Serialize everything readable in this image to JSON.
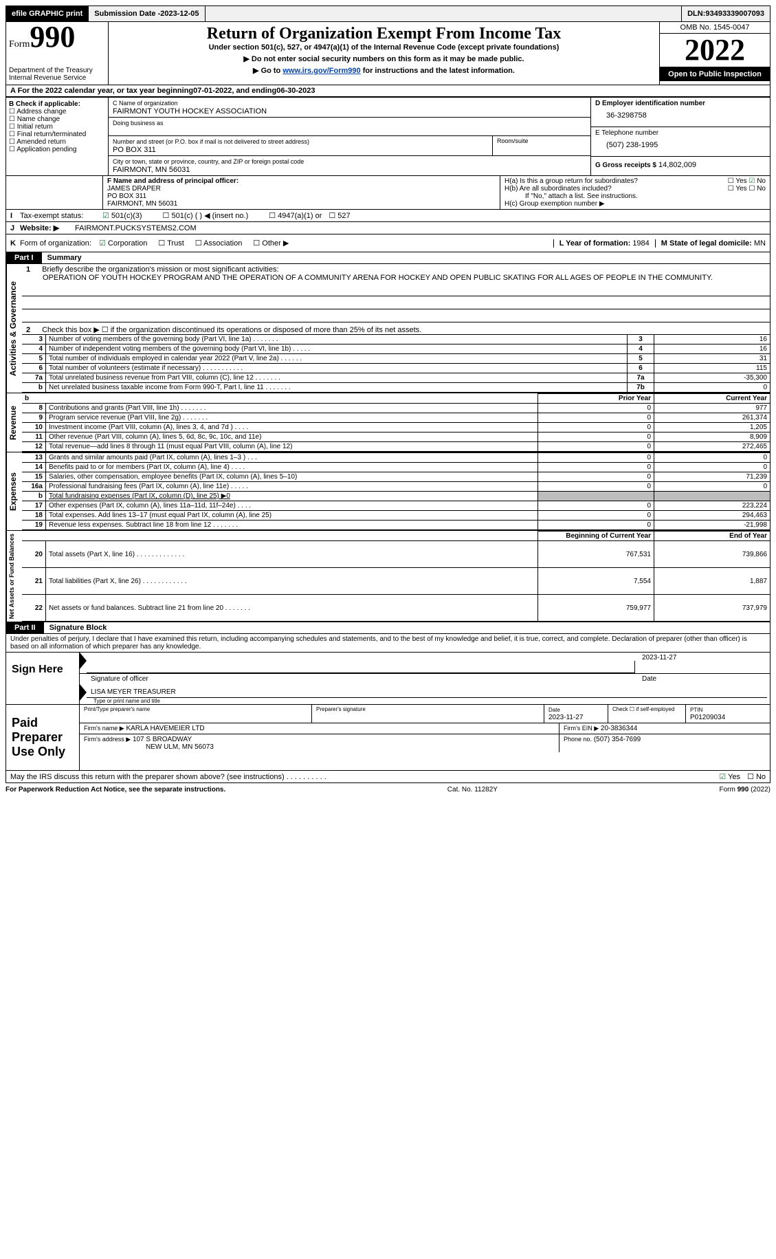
{
  "topbar": {
    "efile": "efile GRAPHIC print",
    "submission_label": "Submission Date - ",
    "submission_date": "2023-12-05",
    "dln_label": "DLN: ",
    "dln": "93493339007093"
  },
  "header": {
    "form_word": "Form",
    "form_num": "990",
    "dept": "Department of the Treasury\nInternal Revenue Service",
    "title": "Return of Organization Exempt From Income Tax",
    "subtitle": "Under section 501(c), 527, or 4947(a)(1) of the Internal Revenue Code (except private foundations)",
    "note1": "▶ Do not enter social security numbers on this form as it may be made public.",
    "note2_pre": "▶ Go to ",
    "note2_link": "www.irs.gov/Form990",
    "note2_post": " for instructions and the latest information.",
    "omb": "OMB No. 1545-0047",
    "year": "2022",
    "open": "Open to Public Inspection"
  },
  "period": {
    "a_label": "A For the 2022 calendar year, or tax year beginning ",
    "begin": "07-01-2022",
    "mid": " , and ending ",
    "end": "06-30-2023"
  },
  "box_b": {
    "label": "B Check if applicable:",
    "items": [
      "Address change",
      "Name change",
      "Initial return",
      "Final return/terminated",
      "Amended return",
      "Application pending"
    ]
  },
  "box_c": {
    "name_label": "C Name of organization",
    "name": "FAIRMONT YOUTH HOCKEY ASSOCIATION",
    "dba_label": "Doing business as",
    "addr_label": "Number and street (or P.O. box if mail is not delivered to street address)",
    "room_label": "Room/suite",
    "addr": "PO BOX 311",
    "city_label": "City or town, state or province, country, and ZIP or foreign postal code",
    "city": "FAIRMONT, MN  56031"
  },
  "box_d": {
    "label": "D Employer identification number",
    "value": "36-3298758"
  },
  "box_e": {
    "label": "E Telephone number",
    "value": "(507) 238-1995"
  },
  "box_g": {
    "label": "G Gross receipts $",
    "value": "14,802,009"
  },
  "box_f": {
    "label": "F  Name and address of principal officer:",
    "name": "JAMES DRAPER",
    "addr1": "PO BOX 311",
    "addr2": "FAIRMONT, MN  56031"
  },
  "box_h": {
    "a": "H(a)  Is this a group return for subordinates?",
    "b": "H(b)  Are all subordinates included?",
    "b_note": "If \"No,\" attach a list. See instructions.",
    "c": "H(c)  Group exemption number ▶",
    "yes": "Yes",
    "no": "No"
  },
  "tax_status": {
    "i": "I",
    "label": "Tax-exempt status:",
    "o1": "501(c)(3)",
    "o2": "501(c) (   ) ◀ (insert no.)",
    "o3": "4947(a)(1) or",
    "o4": "527"
  },
  "website": {
    "j": "J",
    "label": "Website: ▶",
    "value": "FAIRMONT.PUCKSYSTEMS2.COM"
  },
  "line_k": {
    "k": "K",
    "label": "Form of organization:",
    "o1": "Corporation",
    "o2": "Trust",
    "o3": "Association",
    "o4": "Other ▶",
    "l_label": "L Year of formation:",
    "l_val": "1984",
    "m_label": "M State of legal domicile:",
    "m_val": "MN"
  },
  "part1": {
    "tag": "Part I",
    "title": "Summary",
    "q1": "Briefly describe the organization's mission or most significant activities:",
    "mission": "OPERATION OF YOUTH HOCKEY PROGRAM AND THE OPERATION OF A COMMUNITY ARENA FOR HOCKEY AND OPEN PUBLIC SKATING FOR ALL AGES OF PEOPLE IN THE COMMUNITY.",
    "q2": "Check this box ▶ ☐  if the organization discontinued its operations or disposed of more than 25% of its net assets.",
    "vtab_ag": "Activities & Governance",
    "vtab_rev": "Revenue",
    "vtab_exp": "Expenses",
    "vtab_na": "Net Assets or Fund Balances",
    "hdr_prior": "Prior Year",
    "hdr_curr": "Current Year",
    "hdr_boy": "Beginning of Current Year",
    "hdr_eoy": "End of Year",
    "gov_rows": [
      {
        "n": "3",
        "d": "Number of voting members of the governing body (Part VI, line 1a)   .    .    .    .    .    .    .",
        "box": "3",
        "v": "16"
      },
      {
        "n": "4",
        "d": "Number of independent voting members of the governing body (Part VI, line 1b)   .    .    .    .    .",
        "box": "4",
        "v": "16"
      },
      {
        "n": "5",
        "d": "Total number of individuals employed in calendar year 2022 (Part V, line 2a)   .    .    .    .    .    .",
        "box": "5",
        "v": "31"
      },
      {
        "n": "6",
        "d": "Total number of volunteers (estimate if necessary)    .    .    .    .    .    .    .    .    .    .    .",
        "box": "6",
        "v": "115"
      },
      {
        "n": "7a",
        "d": "Total unrelated business revenue from Part VIII, column (C), line 12   .    .    .    .    .    .    .",
        "box": "7a",
        "v": "-35,300"
      },
      {
        "n": "b",
        "d": "Net unrelated business taxable income from Form 990-T, Part I, line 11   .    .    .    .    .    .    .",
        "box": "7b",
        "v": "0"
      }
    ],
    "rev_rows": [
      {
        "n": "8",
        "d": "Contributions and grants (Part VIII, line 1h)   .    .    .    .    .    .    .",
        "p": "0",
        "c": "977"
      },
      {
        "n": "9",
        "d": "Program service revenue (Part VIII, line 2g)   .    .    .    .    .    .    .",
        "p": "0",
        "c": "261,374"
      },
      {
        "n": "10",
        "d": "Investment income (Part VIII, column (A), lines 3, 4, and 7d )   .    .    .    .",
        "p": "0",
        "c": "1,205"
      },
      {
        "n": "11",
        "d": "Other revenue (Part VIII, column (A), lines 5, 6d, 8c, 9c, 10c, and 11e)",
        "p": "0",
        "c": "8,909"
      },
      {
        "n": "12",
        "d": "Total revenue—add lines 8 through 11 (must equal Part VIII, column (A), line 12)",
        "p": "0",
        "c": "272,465"
      }
    ],
    "exp_rows": [
      {
        "n": "13",
        "d": "Grants and similar amounts paid (Part IX, column (A), lines 1–3 )   .    .    .",
        "p": "0",
        "c": "0"
      },
      {
        "n": "14",
        "d": "Benefits paid to or for members (Part IX, column (A), line 4)   .    .    .    .",
        "p": "0",
        "c": "0"
      },
      {
        "n": "15",
        "d": "Salaries, other compensation, employee benefits (Part IX, column (A), lines 5–10)",
        "p": "0",
        "c": "71,239"
      },
      {
        "n": "16a",
        "d": "Professional fundraising fees (Part IX, column (A), line 11e)   .    .    .    .    .",
        "p": "0",
        "c": "0"
      },
      {
        "n": "b",
        "d": "Total fundraising expenses (Part IX, column (D), line 25) ▶0",
        "p": "",
        "c": "",
        "grey": true,
        "underline": true
      },
      {
        "n": "17",
        "d": "Other expenses (Part IX, column (A), lines 11a–11d, 11f–24e)   .    .    .    .",
        "p": "0",
        "c": "223,224"
      },
      {
        "n": "18",
        "d": "Total expenses. Add lines 13–17 (must equal Part IX, column (A), line 25)",
        "p": "0",
        "c": "294,463"
      },
      {
        "n": "19",
        "d": "Revenue less expenses. Subtract line 18 from line 12   .    .    .    .    .    .    .",
        "p": "0",
        "c": "-21,998"
      }
    ],
    "na_rows": [
      {
        "n": "20",
        "d": "Total assets (Part X, line 16)   .    .    .    .    .    .    .    .    .    .    .    .    .",
        "p": "767,531",
        "c": "739,866"
      },
      {
        "n": "21",
        "d": "Total liabilities (Part X, line 26)   .    .    .    .    .    .    .    .    .    .    .    .",
        "p": "7,554",
        "c": "1,887"
      },
      {
        "n": "22",
        "d": "Net assets or fund balances. Subtract line 21 from line 20   .    .    .    .    .    .    .",
        "p": "759,977",
        "c": "737,979"
      }
    ]
  },
  "part2": {
    "tag": "Part II",
    "title": "Signature Block",
    "decl": "Under penalties of perjury, I declare that I have examined this return, including accompanying schedules and statements, and to the best of my knowledge and belief, it is true, correct, and complete. Declaration of preparer (other than officer) is based on all information of which preparer has any knowledge.",
    "sign_here": "Sign Here",
    "sig_officer": "Signature of officer",
    "sig_date": "2023-11-27",
    "date_label": "Date",
    "printed": "LISA MEYER  TREASURER",
    "printed_label": "Type or print name and title",
    "paid": "Paid Preparer Use Only",
    "pp_name_label": "Print/Type preparer's name",
    "pp_sig_label": "Preparer's signature",
    "pp_date_label": "Date",
    "pp_date": "2023-11-27",
    "pp_self": "Check ☐ if self-employed",
    "ptin_label": "PTIN",
    "ptin": "P01209034",
    "firm_name_label": "Firm's name    ▶",
    "firm_name": "KARLA HAVEMEIER LTD",
    "firm_ein_label": "Firm's EIN ▶",
    "firm_ein": "20-3836344",
    "firm_addr_label": "Firm's address ▶",
    "firm_addr1": "107 S BROADWAY",
    "firm_addr2": "NEW ULM, MN  56073",
    "phone_label": "Phone no.",
    "phone": "(507) 354-7699",
    "discuss": "May the IRS discuss this return with the preparer shown above? (see instructions)   .    .    .    .    .    .    .    .    .    .",
    "yes": "Yes",
    "no": "No"
  },
  "footer": {
    "left": "For Paperwork Reduction Act Notice, see the separate instructions.",
    "mid": "Cat. No. 11282Y",
    "right": "Form 990 (2022)"
  }
}
